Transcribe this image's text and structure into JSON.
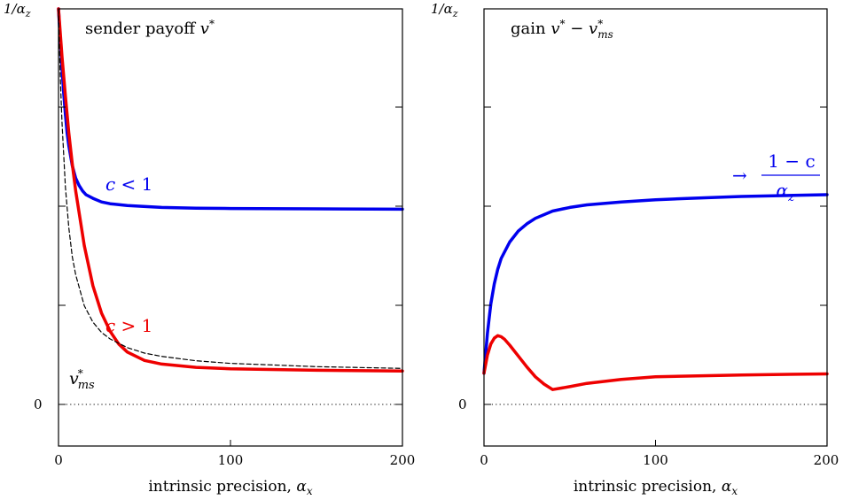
{
  "chart_data": [
    {
      "type": "line",
      "title": "sender payoff v*",
      "title_text": "sender payoff ",
      "title_var": "v",
      "title_sup": "*",
      "xlabel": "intrinsic precision, αx",
      "xlabel_text": "intrinsic precision, ",
      "xlabel_var": "α",
      "xlabel_sub": "x",
      "xlim": [
        0,
        200
      ],
      "xticks": [
        "0",
        "100",
        "200"
      ],
      "ylim": [
        -0.2,
        1.0
      ],
      "ytick_labels": {
        "top_var": "1/α",
        "top_sub": "z",
        "zero": "0"
      },
      "series": [
        {
          "name": "c < 1",
          "name_var": "c",
          "name_rest": " < 1",
          "color": "#0000ee",
          "x": [
            0,
            1,
            2,
            3,
            4,
            5,
            6,
            8,
            10,
            12,
            14,
            16,
            20,
            25,
            30,
            40,
            60,
            80,
            100,
            150,
            200
          ],
          "y": [
            1.0,
            0.92,
            0.84,
            0.77,
            0.71,
            0.66,
            0.625,
            0.57,
            0.535,
            0.515,
            0.5,
            0.49,
            0.48,
            0.47,
            0.465,
            0.46,
            0.455,
            0.453,
            0.452,
            0.451,
            0.45
          ]
        },
        {
          "name": "c > 1",
          "name_var": "c",
          "name_rest": " > 1",
          "color": "#ee0000",
          "x": [
            0,
            2,
            4,
            6,
            8,
            10,
            15,
            20,
            25,
            30,
            35,
            40,
            50,
            60,
            80,
            100,
            150,
            200
          ],
          "y": [
            1.0,
            0.87,
            0.76,
            0.66,
            0.575,
            0.5,
            0.35,
            0.24,
            0.165,
            0.115,
            0.08,
            0.058,
            0.035,
            0.025,
            0.016,
            0.012,
            0.008,
            0.006
          ]
        },
        {
          "name": "v*ms",
          "name_var": "v",
          "name_sup": "*",
          "name_sub": "ms",
          "color": "#000000",
          "dashed": true,
          "x": [
            0,
            1,
            2,
            4,
            6,
            8,
            10,
            15,
            20,
            25,
            30,
            40,
            50,
            60,
            80,
            100,
            150,
            200
          ],
          "y": [
            1.0,
            0.82,
            0.69,
            0.51,
            0.4,
            0.32,
            0.27,
            0.185,
            0.14,
            0.112,
            0.094,
            0.07,
            0.055,
            0.046,
            0.034,
            0.027,
            0.018,
            0.013
          ]
        }
      ]
    },
    {
      "type": "line",
      "title": "gain v* − v*ms",
      "title_text": "gain ",
      "title_var": "v",
      "title_sup": "*",
      "title_op": " − ",
      "title_var2": "v",
      "title_sup2": "*",
      "title_sub2": "ms",
      "annotation": "→ (1 − c)/αz",
      "annotation_arrow": "→",
      "annotation_num": "1 − c",
      "annotation_den_var": "α",
      "annotation_den_sub": "z",
      "annotation_color": "#0000ee",
      "xlabel": "intrinsic precision, αx",
      "xlabel_text": "intrinsic precision, ",
      "xlabel_var": "α",
      "xlabel_sub": "x",
      "xlim": [
        0,
        200
      ],
      "xticks": [
        "0",
        "100",
        "200"
      ],
      "ylim": [
        -0.2,
        1.0
      ],
      "ytick_labels": {
        "top_var": "1/α",
        "top_sub": "z",
        "zero": "0"
      },
      "series": [
        {
          "color": "#0000ee",
          "x": [
            0,
            2,
            4,
            6,
            8,
            10,
            15,
            20,
            25,
            30,
            40,
            50,
            60,
            80,
            100,
            120,
            150,
            200
          ],
          "y": [
            0.0,
            0.11,
            0.19,
            0.245,
            0.285,
            0.315,
            0.36,
            0.39,
            0.41,
            0.425,
            0.445,
            0.455,
            0.462,
            0.47,
            0.476,
            0.48,
            0.485,
            0.49
          ]
        },
        {
          "color": "#ee0000",
          "x": [
            0,
            2,
            4,
            6,
            8,
            10,
            12,
            15,
            20,
            25,
            30,
            35,
            40,
            50,
            60,
            80,
            100,
            150,
            200
          ],
          "y": [
            0.0,
            0.05,
            0.08,
            0.096,
            0.103,
            0.1,
            0.093,
            0.077,
            0.047,
            0.017,
            -0.01,
            -0.03,
            -0.045,
            -0.037,
            -0.028,
            -0.017,
            -0.01,
            -0.005,
            -0.002
          ]
        }
      ]
    }
  ]
}
